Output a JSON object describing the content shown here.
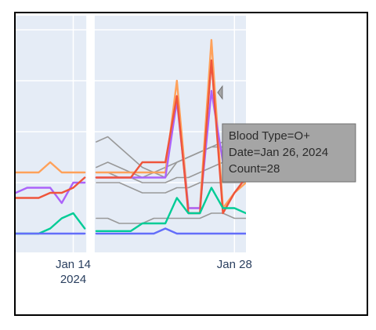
{
  "chart_data": {
    "type": "line",
    "title": "",
    "xlabel": "",
    "ylabel": "",
    "plot_background": "#e5ecf6",
    "grid": true,
    "x_ticks": [
      {
        "date": "2024-01-14",
        "line1": "Jan 14",
        "line2": "2024"
      },
      {
        "date": "2024-01-28",
        "line1": "Jan 28",
        "line2": ""
      }
    ],
    "x_range": [
      "2024-01-09",
      "2024-01-29"
    ],
    "y_range": [
      0,
      40
    ],
    "segments": [
      {
        "from": "2024-01-09",
        "to": "2024-01-15"
      },
      {
        "from": "2024-01-16",
        "to": "2024-01-29"
      }
    ],
    "series": [
      {
        "color": "#ffa15a",
        "highlight": true,
        "points": [
          [
            "2024-01-09",
            12
          ],
          [
            "2024-01-10",
            12
          ],
          [
            "2024-01-11",
            12
          ],
          [
            "2024-01-12",
            14
          ],
          [
            "2024-01-13",
            12
          ],
          [
            "2024-01-14",
            12
          ],
          [
            "2024-01-15",
            12
          ],
          [
            "2024-01-16",
            12
          ],
          [
            "2024-01-17",
            12
          ],
          [
            "2024-01-18",
            12
          ],
          [
            "2024-01-19",
            12
          ],
          [
            "2024-01-20",
            12
          ],
          [
            "2024-01-21",
            12
          ],
          [
            "2024-01-22",
            12
          ],
          [
            "2024-01-23",
            30
          ],
          [
            "2024-01-24",
            5
          ],
          [
            "2024-01-25",
            5
          ],
          [
            "2024-01-26",
            38
          ],
          [
            "2024-01-27",
            5
          ],
          [
            "2024-01-28",
            8
          ],
          [
            "2024-01-29",
            10
          ]
        ]
      },
      {
        "color": "#ab63fa",
        "highlight": true,
        "points": [
          [
            "2024-01-09",
            8
          ],
          [
            "2024-01-10",
            9
          ],
          [
            "2024-01-11",
            9
          ],
          [
            "2024-01-12",
            9
          ],
          [
            "2024-01-13",
            6
          ],
          [
            "2024-01-14",
            10
          ],
          [
            "2024-01-15",
            10
          ],
          [
            "2024-01-16",
            11
          ],
          [
            "2024-01-17",
            11
          ],
          [
            "2024-01-18",
            11
          ],
          [
            "2024-01-19",
            11
          ],
          [
            "2024-01-20",
            11
          ],
          [
            "2024-01-21",
            11
          ],
          [
            "2024-01-22",
            11
          ],
          [
            "2024-01-23",
            26
          ],
          [
            "2024-01-24",
            5
          ],
          [
            "2024-01-25",
            5
          ],
          [
            "2024-01-26",
            28
          ],
          [
            "2024-01-27",
            14
          ],
          [
            "2024-01-28",
            11
          ],
          [
            "2024-01-29",
            11
          ]
        ]
      },
      {
        "color": "#ef553b",
        "highlight": true,
        "points": [
          [
            "2024-01-09",
            7
          ],
          [
            "2024-01-10",
            7
          ],
          [
            "2024-01-11",
            7
          ],
          [
            "2024-01-12",
            8
          ],
          [
            "2024-01-13",
            8
          ],
          [
            "2024-01-14",
            9
          ],
          [
            "2024-01-15",
            11
          ],
          [
            "2024-01-16",
            11
          ],
          [
            "2024-01-17",
            11
          ],
          [
            "2024-01-18",
            11
          ],
          [
            "2024-01-19",
            11
          ],
          [
            "2024-01-20",
            14
          ],
          [
            "2024-01-21",
            14
          ],
          [
            "2024-01-22",
            14
          ],
          [
            "2024-01-23",
            27
          ],
          [
            "2024-01-24",
            4
          ],
          [
            "2024-01-25",
            4
          ],
          [
            "2024-01-26",
            34
          ],
          [
            "2024-01-27",
            4
          ],
          [
            "2024-01-28",
            8
          ],
          [
            "2024-01-29",
            11
          ]
        ]
      },
      {
        "color": "#00cc96",
        "highlight": true,
        "points": [
          [
            "2024-01-09",
            0
          ],
          [
            "2024-01-10",
            0
          ],
          [
            "2024-01-11",
            0
          ],
          [
            "2024-01-12",
            1
          ],
          [
            "2024-01-13",
            3
          ],
          [
            "2024-01-14",
            4
          ],
          [
            "2024-01-15",
            1
          ],
          [
            "2024-01-16",
            0.5
          ],
          [
            "2024-01-17",
            0.5
          ],
          [
            "2024-01-18",
            0.5
          ],
          [
            "2024-01-19",
            0.5
          ],
          [
            "2024-01-20",
            2
          ],
          [
            "2024-01-21",
            2
          ],
          [
            "2024-01-22",
            2
          ],
          [
            "2024-01-23",
            7
          ],
          [
            "2024-01-24",
            4
          ],
          [
            "2024-01-25",
            4
          ],
          [
            "2024-01-26",
            9
          ],
          [
            "2024-01-27",
            5
          ],
          [
            "2024-01-28",
            5
          ],
          [
            "2024-01-29",
            4
          ]
        ]
      },
      {
        "color": "#636efa",
        "highlight": true,
        "points": [
          [
            "2024-01-09",
            0
          ],
          [
            "2024-01-10",
            0
          ],
          [
            "2024-01-11",
            0
          ],
          [
            "2024-01-12",
            0
          ],
          [
            "2024-01-13",
            0
          ],
          [
            "2024-01-14",
            0
          ],
          [
            "2024-01-15",
            0
          ],
          [
            "2024-01-16",
            0
          ],
          [
            "2024-01-17",
            0
          ],
          [
            "2024-01-18",
            0
          ],
          [
            "2024-01-19",
            0
          ],
          [
            "2024-01-20",
            0
          ],
          [
            "2024-01-21",
            0
          ],
          [
            "2024-01-22",
            1
          ],
          [
            "2024-01-23",
            0
          ],
          [
            "2024-01-24",
            0
          ],
          [
            "2024-01-25",
            0
          ],
          [
            "2024-01-26",
            0
          ],
          [
            "2024-01-27",
            0
          ],
          [
            "2024-01-28",
            0
          ],
          [
            "2024-01-29",
            0
          ]
        ]
      },
      {
        "color": "#999999",
        "highlight": false,
        "points": [
          [
            "2024-01-16",
            18
          ],
          [
            "2024-01-17",
            19
          ],
          [
            "2024-01-18",
            17
          ],
          [
            "2024-01-19",
            15
          ],
          [
            "2024-01-20",
            13
          ],
          [
            "2024-01-21",
            12
          ],
          [
            "2024-01-22",
            11
          ],
          [
            "2024-01-23",
            14
          ],
          [
            "2024-01-24",
            15
          ],
          [
            "2024-01-25",
            16
          ],
          [
            "2024-01-26",
            17
          ],
          [
            "2024-01-27",
            18
          ],
          [
            "2024-01-28",
            18
          ],
          [
            "2024-01-29",
            19
          ]
        ]
      },
      {
        "color": "#999999",
        "highlight": false,
        "points": [
          [
            "2024-01-16",
            13
          ],
          [
            "2024-01-17",
            14
          ],
          [
            "2024-01-18",
            13
          ],
          [
            "2024-01-19",
            12
          ],
          [
            "2024-01-20",
            11
          ],
          [
            "2024-01-21",
            12
          ],
          [
            "2024-01-22",
            13
          ],
          [
            "2024-01-23",
            14
          ],
          [
            "2024-01-24",
            15
          ],
          [
            "2024-01-25",
            16
          ],
          [
            "2024-01-26",
            17
          ],
          [
            "2024-01-27",
            17
          ],
          [
            "2024-01-28",
            16
          ],
          [
            "2024-01-29",
            15
          ]
        ]
      },
      {
        "color": "#999999",
        "highlight": false,
        "points": [
          [
            "2024-01-16",
            12
          ],
          [
            "2024-01-17",
            12
          ],
          [
            "2024-01-18",
            11
          ],
          [
            "2024-01-19",
            11
          ],
          [
            "2024-01-20",
            10
          ],
          [
            "2024-01-21",
            10
          ],
          [
            "2024-01-22",
            10
          ],
          [
            "2024-01-23",
            11
          ],
          [
            "2024-01-24",
            11
          ],
          [
            "2024-01-25",
            12
          ],
          [
            "2024-01-26",
            13
          ],
          [
            "2024-01-27",
            14
          ],
          [
            "2024-01-28",
            12
          ],
          [
            "2024-01-29",
            11
          ]
        ]
      },
      {
        "color": "#999999",
        "highlight": false,
        "points": [
          [
            "2024-01-16",
            10
          ],
          [
            "2024-01-17",
            10
          ],
          [
            "2024-01-18",
            10
          ],
          [
            "2024-01-19",
            9
          ],
          [
            "2024-01-20",
            8
          ],
          [
            "2024-01-21",
            8
          ],
          [
            "2024-01-22",
            8
          ],
          [
            "2024-01-23",
            9
          ],
          [
            "2024-01-24",
            9
          ],
          [
            "2024-01-25",
            10
          ],
          [
            "2024-01-26",
            10
          ],
          [
            "2024-01-27",
            10
          ],
          [
            "2024-01-28",
            10
          ],
          [
            "2024-01-29",
            10
          ]
        ]
      },
      {
        "color": "#999999",
        "highlight": false,
        "points": [
          [
            "2024-01-16",
            3
          ],
          [
            "2024-01-17",
            3
          ],
          [
            "2024-01-18",
            2
          ],
          [
            "2024-01-19",
            2
          ],
          [
            "2024-01-20",
            2
          ],
          [
            "2024-01-21",
            3
          ],
          [
            "2024-01-22",
            3
          ],
          [
            "2024-01-23",
            3
          ],
          [
            "2024-01-24",
            3
          ],
          [
            "2024-01-25",
            3
          ],
          [
            "2024-01-26",
            4
          ],
          [
            "2024-01-27",
            4
          ],
          [
            "2024-01-28",
            3
          ],
          [
            "2024-01-29",
            3
          ]
        ]
      }
    ],
    "hover": {
      "x": "2024-01-26",
      "y": 28,
      "lines": [
        "Blood Type=O+",
        "Date=Jan 26, 2024",
        "Count=28"
      ],
      "background": "#a5a5a5",
      "border": "#6f6f6f"
    }
  }
}
